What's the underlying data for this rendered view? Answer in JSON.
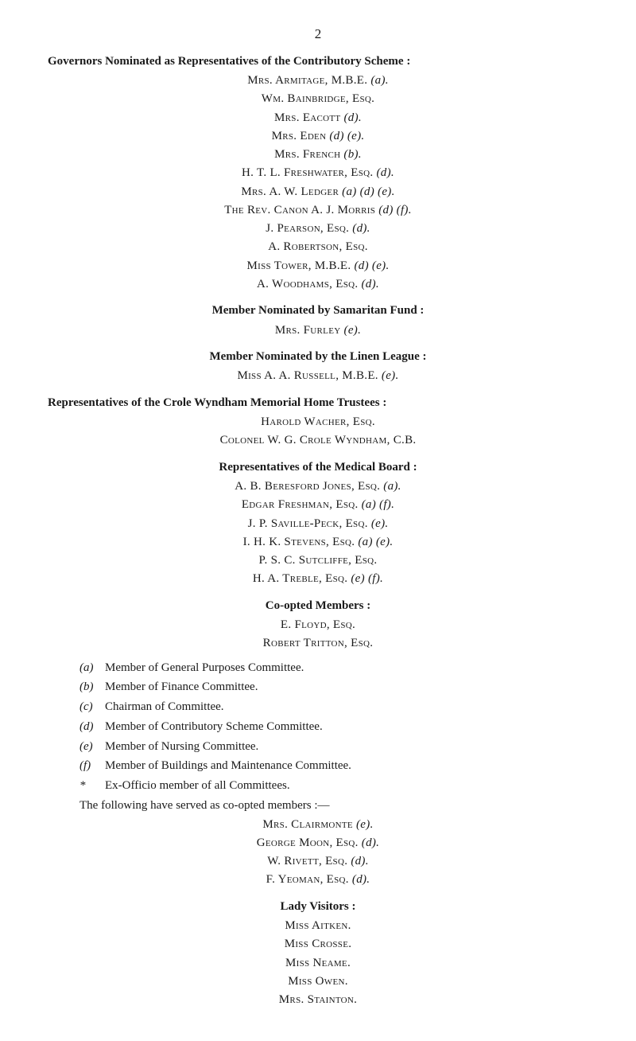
{
  "page_number": "2",
  "sections": {
    "governors": {
      "title": "Governors Nominated as Representatives of the Contributory Scheme :",
      "lines": [
        {
          "name": "Mrs. Armitage, M.B.E.",
          "suffix": "(a)."
        },
        {
          "name": "Wm. Bainbridge, Esq.",
          "suffix": ""
        },
        {
          "name": "Mrs. Eacott",
          "suffix": "(d)."
        },
        {
          "name": "Mrs. Eden",
          "suffix": "(d) (e)."
        },
        {
          "name": "Mrs. French",
          "suffix": "(b)."
        },
        {
          "name": "H. T. L. Freshwater, Esq.",
          "suffix": "(d)."
        },
        {
          "name": "Mrs. A. W. Ledger",
          "suffix": "(a) (d) (e)."
        },
        {
          "name": "The Rev. Canon A. J. Morris",
          "suffix": "(d) (f)."
        },
        {
          "name": "J. Pearson, Esq.",
          "suffix": "(d)."
        },
        {
          "name": "A. Robertson, Esq.",
          "suffix": ""
        },
        {
          "name": "Miss Tower, M.B.E.",
          "suffix": "(d) (e)."
        },
        {
          "name": "A. Woodhams, Esq.",
          "suffix": "(d)."
        }
      ]
    },
    "samaritan": {
      "title": "Member Nominated by Samaritan Fund :",
      "lines": [
        {
          "name": "Mrs. Furley",
          "suffix": "(e)."
        }
      ]
    },
    "linen": {
      "title": "Member Nominated by the Linen League :",
      "lines": [
        {
          "name": "Miss A. A. Russell, M.B.E.",
          "suffix": "(e)."
        }
      ]
    },
    "crole": {
      "title": "Representatives of the Crole Wyndham Memorial Home Trustees :",
      "lines": [
        {
          "name": "Harold Wacher, Esq.",
          "suffix": ""
        },
        {
          "name": "Colonel W. G. Crole Wyndham, C.B.",
          "suffix": ""
        }
      ]
    },
    "medical": {
      "title": "Representatives of the Medical Board :",
      "lines": [
        {
          "name": "A. B. Beresford Jones, Esq.",
          "suffix": "(a)."
        },
        {
          "name": "Edgar Freshman, Esq.",
          "suffix": "(a) (f)."
        },
        {
          "name": "J. P. Saville-Peck, Esq.",
          "suffix": "(e)."
        },
        {
          "name": "I. H. K. Stevens, Esq.",
          "suffix": "(a) (e)."
        },
        {
          "name": "P. S. C. Sutcliffe, Esq.",
          "suffix": ""
        },
        {
          "name": "H. A. Treble, Esq.",
          "suffix": "(e) (f)."
        }
      ]
    },
    "coopted": {
      "title": "Co-opted Members :",
      "lines": [
        {
          "name": "E. Floyd, Esq.",
          "suffix": ""
        },
        {
          "name": "Robert Tritton, Esq.",
          "suffix": ""
        }
      ]
    },
    "keys": [
      {
        "label": "(a)",
        "text": "Member of General Purposes Committee."
      },
      {
        "label": "(b)",
        "text": "Member of Finance Committee."
      },
      {
        "label": "(c)",
        "text": "Chairman of Committee."
      },
      {
        "label": "(d)",
        "text": "Member of Contributory Scheme Committee."
      },
      {
        "label": "(e)",
        "text": "Member of Nursing Committee."
      },
      {
        "label": "(f)",
        "text": "Member of Buildings and Maintenance Committee."
      },
      {
        "label": "*",
        "text": "Ex-Officio member of all Committees."
      }
    ],
    "coopted_followup": {
      "intro": "The following have served as co-opted members :—",
      "lines": [
        {
          "name": "Mrs. Clairmonte",
          "suffix": "(e)."
        },
        {
          "name": "George Moon, Esq.",
          "suffix": "(d)."
        },
        {
          "name": "W. Rivett, Esq.",
          "suffix": "(d)."
        },
        {
          "name": "F. Yeoman, Esq.",
          "suffix": "(d)."
        }
      ]
    },
    "lady": {
      "title": "Lady Visitors :",
      "lines": [
        {
          "name": "Miss Aitken.",
          "suffix": ""
        },
        {
          "name": "Miss Crosse.",
          "suffix": ""
        },
        {
          "name": "Miss Neame.",
          "suffix": ""
        },
        {
          "name": "Miss Owen.",
          "suffix": ""
        },
        {
          "name": "Mrs. Stainton.",
          "suffix": ""
        }
      ]
    }
  }
}
